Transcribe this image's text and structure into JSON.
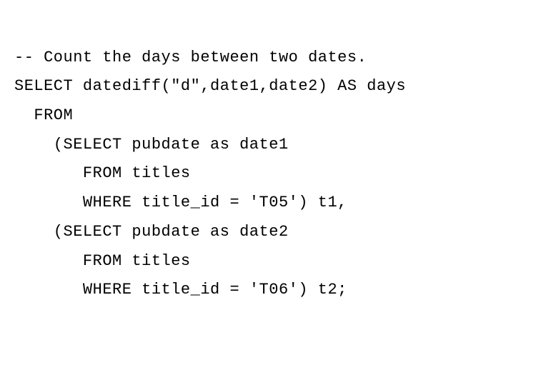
{
  "code": {
    "lines": [
      "-- Count the days between two dates.",
      "SELECT datediff(\"d\",date1,date2) AS days",
      "  FROM",
      "    (SELECT pubdate as date1",
      "       FROM titles",
      "       WHERE title_id = 'T05') t1,",
      "    (SELECT pubdate as date2",
      "       FROM titles",
      "       WHERE title_id = 'T06') t2;"
    ],
    "font_family": "monospace",
    "font_size": 22,
    "line_height": 1.85,
    "text_color": "#000000",
    "background_color": "#ffffff"
  }
}
